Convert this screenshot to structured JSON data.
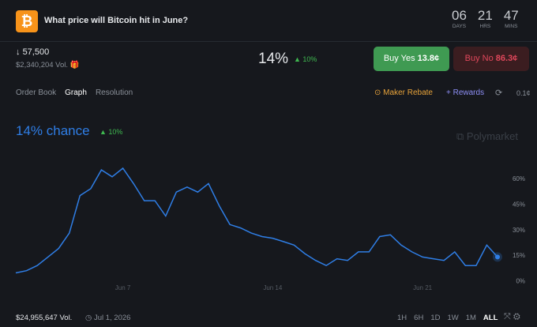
{
  "header": {
    "title": "What price will Bitcoin hit in June?",
    "countdown": [
      {
        "value": "06",
        "unit": "DAYS"
      },
      {
        "value": "21",
        "unit": "HRS"
      },
      {
        "value": "47",
        "unit": "MINS"
      }
    ]
  },
  "market": {
    "target": "57,500",
    "volume": "$2,340,204 Vol.",
    "chance": "14%",
    "change": "10%",
    "buy_yes": {
      "label": "Buy Yes",
      "price": "13.8¢"
    },
    "buy_no": {
      "label": "Buy No",
      "price": "86.3¢"
    }
  },
  "tabs": [
    "Order Book",
    "Graph",
    "Resolution"
  ],
  "actions": {
    "maker_rebate": "Maker Rebate",
    "rewards": "+ Rewards",
    "spread": "0.1¢"
  },
  "chart_data": {
    "type": "line",
    "title": "14% chance",
    "change": "10%",
    "watermark": "Polymarket",
    "categories": [
      null,
      null,
      null,
      null,
      null,
      null,
      null,
      null,
      null,
      null,
      "Jun 7",
      null,
      null,
      null,
      null,
      null,
      null,
      null,
      null,
      null,
      null,
      null,
      null,
      null,
      "Jun 14",
      null,
      null,
      null,
      null,
      null,
      null,
      null,
      null,
      null,
      null,
      null,
      null,
      null,
      "Jun 21",
      null,
      null,
      null,
      null,
      null,
      null,
      null
    ],
    "series": [
      {
        "name": "Yes",
        "color": "#2f7ee6",
        "values": [
          4.7,
          6,
          9,
          14,
          19,
          28,
          50,
          54,
          65,
          61,
          66,
          57,
          47,
          47,
          38,
          52,
          55,
          52,
          57,
          44,
          33,
          31,
          28,
          26,
          25,
          23,
          21,
          16,
          12,
          9,
          13,
          12,
          17,
          17,
          26,
          27,
          21,
          17,
          14,
          13,
          12,
          17,
          9,
          9,
          21,
          14
        ]
      }
    ],
    "ylim": [
      -2,
      72
    ],
    "yticks": [
      {
        "value": 0,
        "label": "0%"
      },
      {
        "value": 15,
        "label": "15%"
      },
      {
        "value": 30,
        "label": "30%"
      },
      {
        "value": 45,
        "label": "45%"
      },
      {
        "value": 60,
        "label": "60%"
      }
    ],
    "grid": false
  },
  "footer": {
    "volume": "$24,955,647 Vol.",
    "end_date": "Jul 1, 2026",
    "ranges": [
      "1H",
      "6H",
      "1D",
      "1W",
      "1M",
      "ALL"
    ]
  }
}
